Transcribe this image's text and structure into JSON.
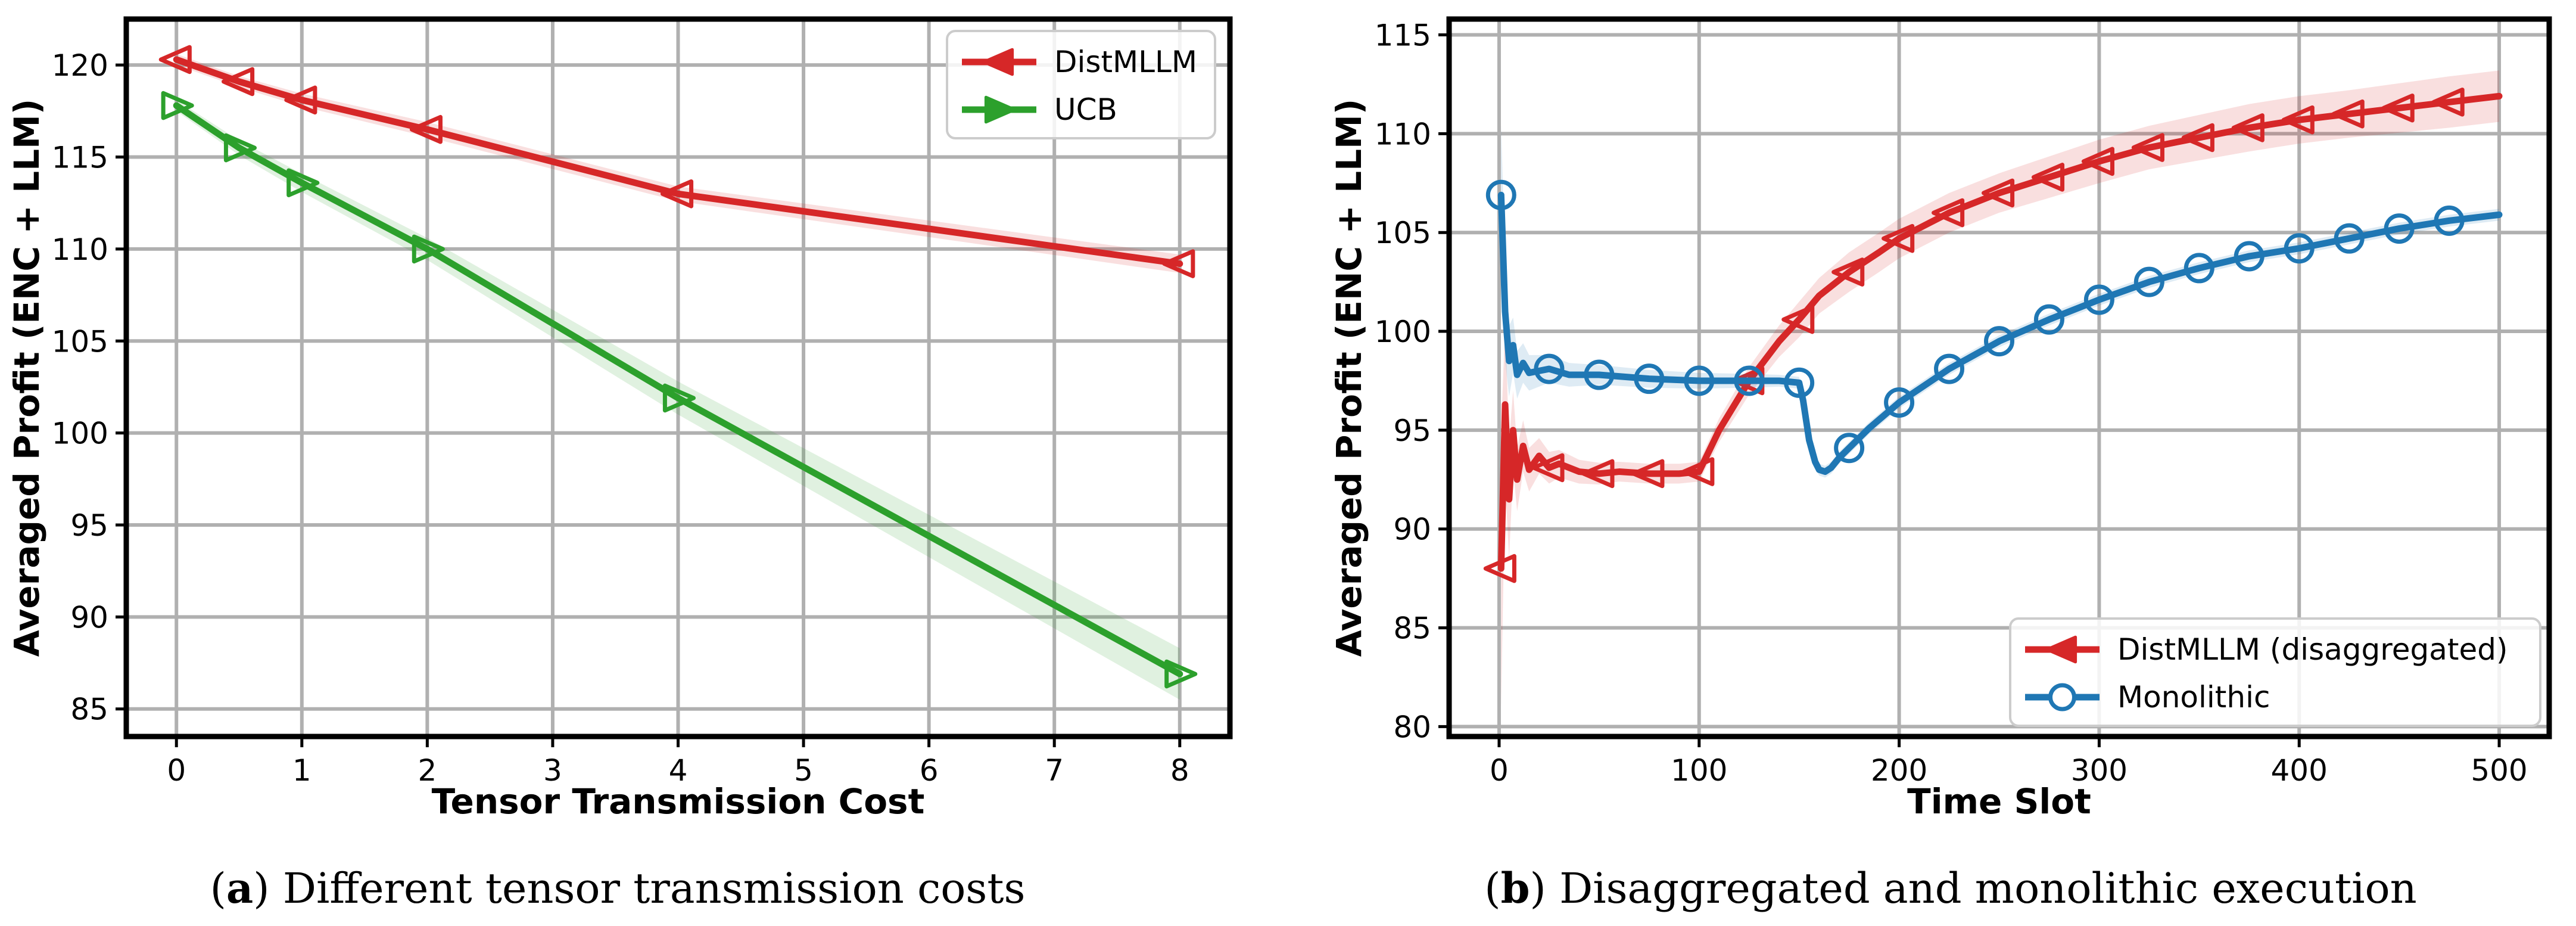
{
  "chart_data": [
    {
      "type": "line",
      "xlabel": "Tensor Transmission Cost",
      "ylabel": "Averaged Profit (ENC + LLM)",
      "xlim": [
        -0.4,
        8.4
      ],
      "ylim": [
        83.5,
        122.5
      ],
      "xticks": [
        0,
        1,
        2,
        3,
        4,
        5,
        6,
        7,
        8
      ],
      "yticks": [
        85,
        90,
        95,
        100,
        105,
        110,
        115,
        120
      ],
      "grid": true,
      "legend_position": "top-right",
      "caption_letter": "a",
      "caption_text": " Different tensor transmission costs",
      "series": [
        {
          "name": "DistMLLM",
          "color": "#d62728",
          "marker": "triangle-left",
          "x": [
            0,
            0.5,
            1,
            2,
            4,
            8
          ],
          "values": [
            120.3,
            119.1,
            118.1,
            116.5,
            113.0,
            109.2
          ],
          "band": [
            0.3,
            0.3,
            0.35,
            0.4,
            0.4,
            0.5
          ]
        },
        {
          "name": "UCB",
          "color": "#2ca02c",
          "marker": "triangle-right",
          "x": [
            0,
            0.5,
            1,
            2,
            4,
            8
          ],
          "values": [
            117.8,
            115.5,
            113.6,
            110.0,
            101.9,
            86.9
          ],
          "band": [
            0.3,
            0.4,
            0.5,
            0.6,
            0.9,
            1.4
          ]
        }
      ]
    },
    {
      "type": "line",
      "xlabel": "Time Slot",
      "ylabel": "Averaged Profit (ENC + LLM)",
      "xlim": [
        -25,
        525
      ],
      "ylim": [
        79.5,
        115.8
      ],
      "xticks": [
        0,
        100,
        200,
        300,
        400,
        500
      ],
      "yticks": [
        80,
        85,
        90,
        95,
        100,
        105,
        110,
        115
      ],
      "grid": true,
      "legend_position": "lower-right",
      "caption_letter": "b",
      "caption_text": " Disaggregated and monolithic execution",
      "series": [
        {
          "name": "DistMLLM (disaggregated)",
          "color": "#d62728",
          "marker": "triangle-left",
          "x": [
            1,
            3,
            5,
            7,
            9,
            12,
            15,
            20,
            25,
            30,
            40,
            50,
            60,
            75,
            90,
            100,
            110,
            125,
            140,
            150,
            160,
            175,
            190,
            200,
            225,
            250,
            275,
            300,
            325,
            350,
            375,
            400,
            425,
            450,
            475,
            500
          ],
          "values": [
            88.0,
            96.3,
            91.5,
            95.0,
            92.5,
            94.2,
            93.0,
            93.7,
            93.1,
            93.3,
            92.9,
            92.8,
            92.9,
            92.8,
            92.8,
            92.9,
            95.0,
            97.5,
            99.5,
            100.6,
            101.8,
            103.0,
            104.0,
            104.7,
            106.0,
            107.0,
            107.8,
            108.6,
            109.3,
            109.8,
            110.3,
            110.7,
            111.0,
            111.3,
            111.6,
            111.9
          ],
          "band": [
            7.0,
            4.0,
            3.0,
            2.0,
            1.6,
            1.3,
            1.1,
            0.9,
            0.8,
            0.7,
            0.6,
            0.55,
            0.5,
            0.5,
            0.5,
            0.5,
            0.6,
            0.7,
            0.8,
            0.9,
            0.9,
            1.0,
            1.0,
            1.0,
            1.0,
            1.0,
            1.05,
            1.1,
            1.1,
            1.15,
            1.2,
            1.2,
            1.2,
            1.25,
            1.3,
            1.3
          ],
          "marker_x": [
            1,
            25,
            50,
            75,
            100,
            125,
            150,
            175,
            200,
            225,
            250,
            275,
            300,
            325,
            350,
            375,
            400,
            425,
            450,
            475
          ]
        },
        {
          "name": "Monolithic",
          "color": "#1f77b4",
          "marker": "circle",
          "x": [
            1,
            3,
            5,
            7,
            9,
            12,
            15,
            20,
            25,
            35,
            50,
            75,
            100,
            125,
            140,
            150,
            152,
            155,
            158,
            160,
            163,
            166,
            170,
            175,
            185,
            200,
            225,
            250,
            275,
            300,
            325,
            350,
            375,
            400,
            425,
            450,
            475,
            500
          ],
          "values": [
            106.9,
            101.0,
            98.5,
            99.3,
            97.8,
            98.4,
            97.9,
            98.0,
            98.1,
            97.8,
            97.8,
            97.6,
            97.5,
            97.5,
            97.5,
            97.4,
            96.5,
            94.5,
            93.4,
            93.0,
            92.9,
            93.1,
            93.6,
            94.1,
            95.1,
            96.4,
            98.1,
            99.5,
            100.6,
            101.6,
            102.5,
            103.2,
            103.8,
            104.2,
            104.7,
            105.2,
            105.6,
            105.9
          ],
          "band": [
            3.5,
            2.5,
            1.8,
            1.4,
            1.2,
            1.0,
            0.9,
            0.8,
            0.7,
            0.6,
            0.5,
            0.45,
            0.4,
            0.35,
            0.3,
            0.3,
            0.3,
            0.3,
            0.3,
            0.3,
            0.3,
            0.3,
            0.3,
            0.3,
            0.3,
            0.3,
            0.3,
            0.3,
            0.3,
            0.3,
            0.3,
            0.3,
            0.3,
            0.3,
            0.3,
            0.3,
            0.3,
            0.3
          ],
          "marker_x": [
            1,
            25,
            50,
            75,
            100,
            125,
            150,
            175,
            200,
            225,
            250,
            275,
            300,
            325,
            350,
            375,
            400,
            425,
            450,
            475
          ]
        }
      ]
    }
  ]
}
